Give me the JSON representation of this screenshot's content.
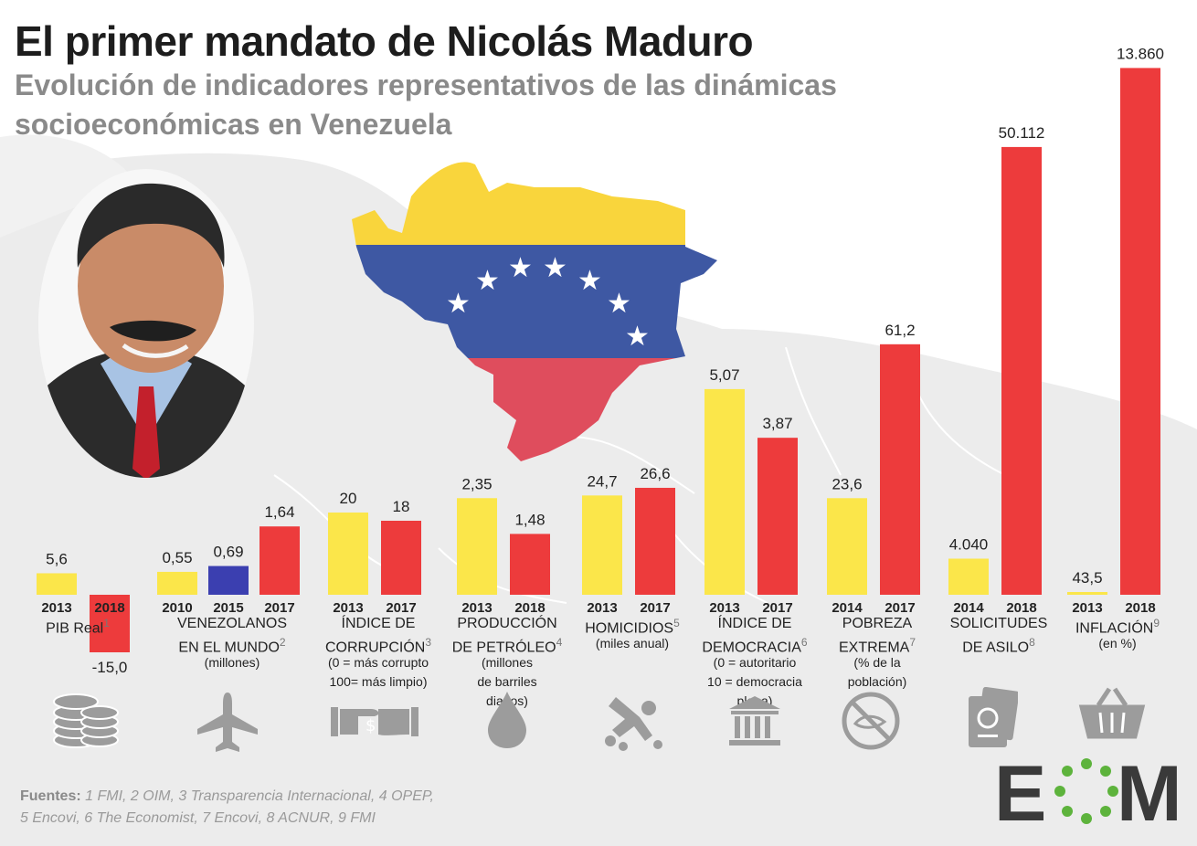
{
  "title": "El primer mandato de Nicolás Maduro",
  "subtitle": "Evolución de indicadores representativos de las dinámicas socioeconómicas en Venezuela",
  "colors": {
    "yellow": "#fbe64a",
    "red": "#ed3b3c",
    "blue": "#3b3fb0",
    "flag_yellow": "#f9d53c",
    "flag_blue": "#3e58a3",
    "flag_red": "#df4d5d"
  },
  "chart_data": [
    {
      "type": "bar",
      "group": "PIB Real",
      "sup": "1",
      "categories": [
        "2013",
        "2018"
      ],
      "values": [
        5.6,
        -15.0
      ],
      "labels": [
        "5,6",
        "-15,0"
      ],
      "colors": [
        "yellow",
        "red"
      ]
    },
    {
      "type": "bar",
      "group": "VENEZOLANOS EN EL MUNDO",
      "group_lines": [
        "VENEZOLANOS",
        "EN EL MUNDO"
      ],
      "sup": "2",
      "note": [
        "(millones)"
      ],
      "categories": [
        "2010",
        "2015",
        "2017"
      ],
      "values": [
        0.55,
        0.69,
        1.64
      ],
      "labels": [
        "0,55",
        "0,69",
        "1,64"
      ],
      "colors": [
        "yellow",
        "blue",
        "red"
      ]
    },
    {
      "type": "bar",
      "group": "ÍNDICE DE CORRUPCIÓN",
      "group_lines": [
        "ÍNDICE DE",
        "CORRUPCIÓN"
      ],
      "sup": "3",
      "note": [
        "(0 = más corrupto",
        "100= más limpio)"
      ],
      "categories": [
        "2013",
        "2017"
      ],
      "values": [
        20,
        18
      ],
      "labels": [
        "20",
        "18"
      ],
      "colors": [
        "yellow",
        "red"
      ]
    },
    {
      "type": "bar",
      "group": "PRODUCCIÓN DE PETRÓLEO",
      "group_lines": [
        "PRODUCCIÓN",
        "DE PETRÓLEO"
      ],
      "sup": "4",
      "note": [
        "(millones",
        "de barriles",
        "diarios)"
      ],
      "categories": [
        "2013",
        "2018"
      ],
      "values": [
        2.35,
        1.48
      ],
      "labels": [
        "2,35",
        "1,48"
      ],
      "colors": [
        "yellow",
        "red"
      ]
    },
    {
      "type": "bar",
      "group": "HOMICIDIOS",
      "group_lines": [
        "HOMICIDIOS"
      ],
      "sup": "5",
      "note": [
        "(miles anual)"
      ],
      "categories": [
        "2013",
        "2017"
      ],
      "values": [
        24.7,
        26.6
      ],
      "labels": [
        "24,7",
        "26,6"
      ],
      "colors": [
        "yellow",
        "red"
      ]
    },
    {
      "type": "bar",
      "group": "ÍNDICE DE DEMOCRACIA",
      "group_lines": [
        "ÍNDICE DE",
        "DEMOCRACIA"
      ],
      "sup": "6",
      "note": [
        "(0 = autoritario",
        "10 = democracia",
        "plena)"
      ],
      "categories": [
        "2013",
        "2017"
      ],
      "values": [
        5.07,
        3.87
      ],
      "labels": [
        "5,07",
        "3,87"
      ],
      "colors": [
        "yellow",
        "red"
      ]
    },
    {
      "type": "bar",
      "group": "POBREZA EXTREMA",
      "group_lines": [
        "POBREZA",
        "EXTREMA"
      ],
      "sup": "7",
      "note": [
        "(% de la",
        "población)"
      ],
      "categories": [
        "2014",
        "2017"
      ],
      "values": [
        23.6,
        61.2
      ],
      "labels": [
        "23,6",
        "61,2"
      ],
      "colors": [
        "yellow",
        "red"
      ]
    },
    {
      "type": "bar",
      "group": "SOLICITUDES DE ASILO",
      "group_lines": [
        "SOLICITUDES",
        "DE ASILO"
      ],
      "sup": "8",
      "categories": [
        "2014",
        "2018"
      ],
      "values": [
        4040,
        50112
      ],
      "labels": [
        "4.040",
        "50.112"
      ],
      "colors": [
        "yellow",
        "red"
      ]
    },
    {
      "type": "bar",
      "group": "INFLACIÓN",
      "group_lines": [
        "INFLACIÓN"
      ],
      "sup": "9",
      "note": [
        "(en %)"
      ],
      "categories": [
        "2013",
        "2018"
      ],
      "values": [
        43.5,
        13860
      ],
      "labels": [
        "43,5",
        "13.860"
      ],
      "colors": [
        "yellow",
        "red"
      ]
    }
  ],
  "icons": [
    "coins-icon",
    "airplane-icon",
    "money-exchange-icon",
    "oil-drop-icon",
    "crime-scene-icon",
    "government-building-icon",
    "no-food-icon",
    "passport-icon",
    "shopping-basket-icon"
  ],
  "sources": {
    "label": "Fuentes:",
    "line1": "1 FMI, 2 OIM, 3 Transparencia Internacional, 4 OPEP,",
    "line2": "5 Encovi, 6 The Economist, 7 Encovi, 8 ACNUR, 9 FMI"
  },
  "logo": {
    "text_left": "E",
    "text_right": "M"
  }
}
